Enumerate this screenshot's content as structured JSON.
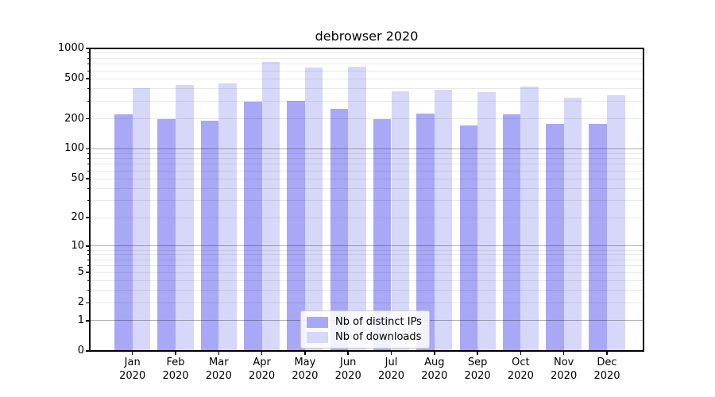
{
  "figure": {
    "title": "debrowser 2020",
    "background": "#ffffff"
  },
  "chart_data": {
    "type": "bar",
    "title": "debrowser 2020",
    "x_categories": [
      "Jan 2020",
      "Feb 2020",
      "Mar 2020",
      "Apr 2020",
      "May 2020",
      "Jun 2020",
      "Jul 2020",
      "Aug 2020",
      "Sep 2020",
      "Oct 2020",
      "Nov 2020",
      "Dec 2020"
    ],
    "months": [
      "Jan",
      "Feb",
      "Mar",
      "Apr",
      "May",
      "Jun",
      "Jul",
      "Aug",
      "Sep",
      "Oct",
      "Nov",
      "Dec"
    ],
    "year": "2020",
    "series": [
      {
        "name": "Nb of distinct IPs",
        "color": "#a8a8f7",
        "values": [
          220,
          198,
          191,
          296,
          300,
          252,
          197,
          227,
          171,
          222,
          179,
          179
        ]
      },
      {
        "name": "Nb of downloads",
        "color": "#d7d7f9",
        "values": [
          400,
          430,
          450,
          730,
          645,
          660,
          376,
          391,
          367,
          422,
          323,
          343
        ]
      }
    ],
    "y_scale": "log1p",
    "y_ticks": [
      0,
      1,
      2,
      5,
      10,
      20,
      50,
      100,
      200,
      500,
      1000
    ],
    "y_minor_ticks": [
      3,
      4,
      6,
      7,
      8,
      9,
      30,
      40,
      60,
      70,
      80,
      90,
      300,
      400,
      600,
      700,
      800,
      900
    ],
    "ylim": [
      0,
      1000
    ],
    "grid": true,
    "legend_position": "lower center inside plot"
  }
}
